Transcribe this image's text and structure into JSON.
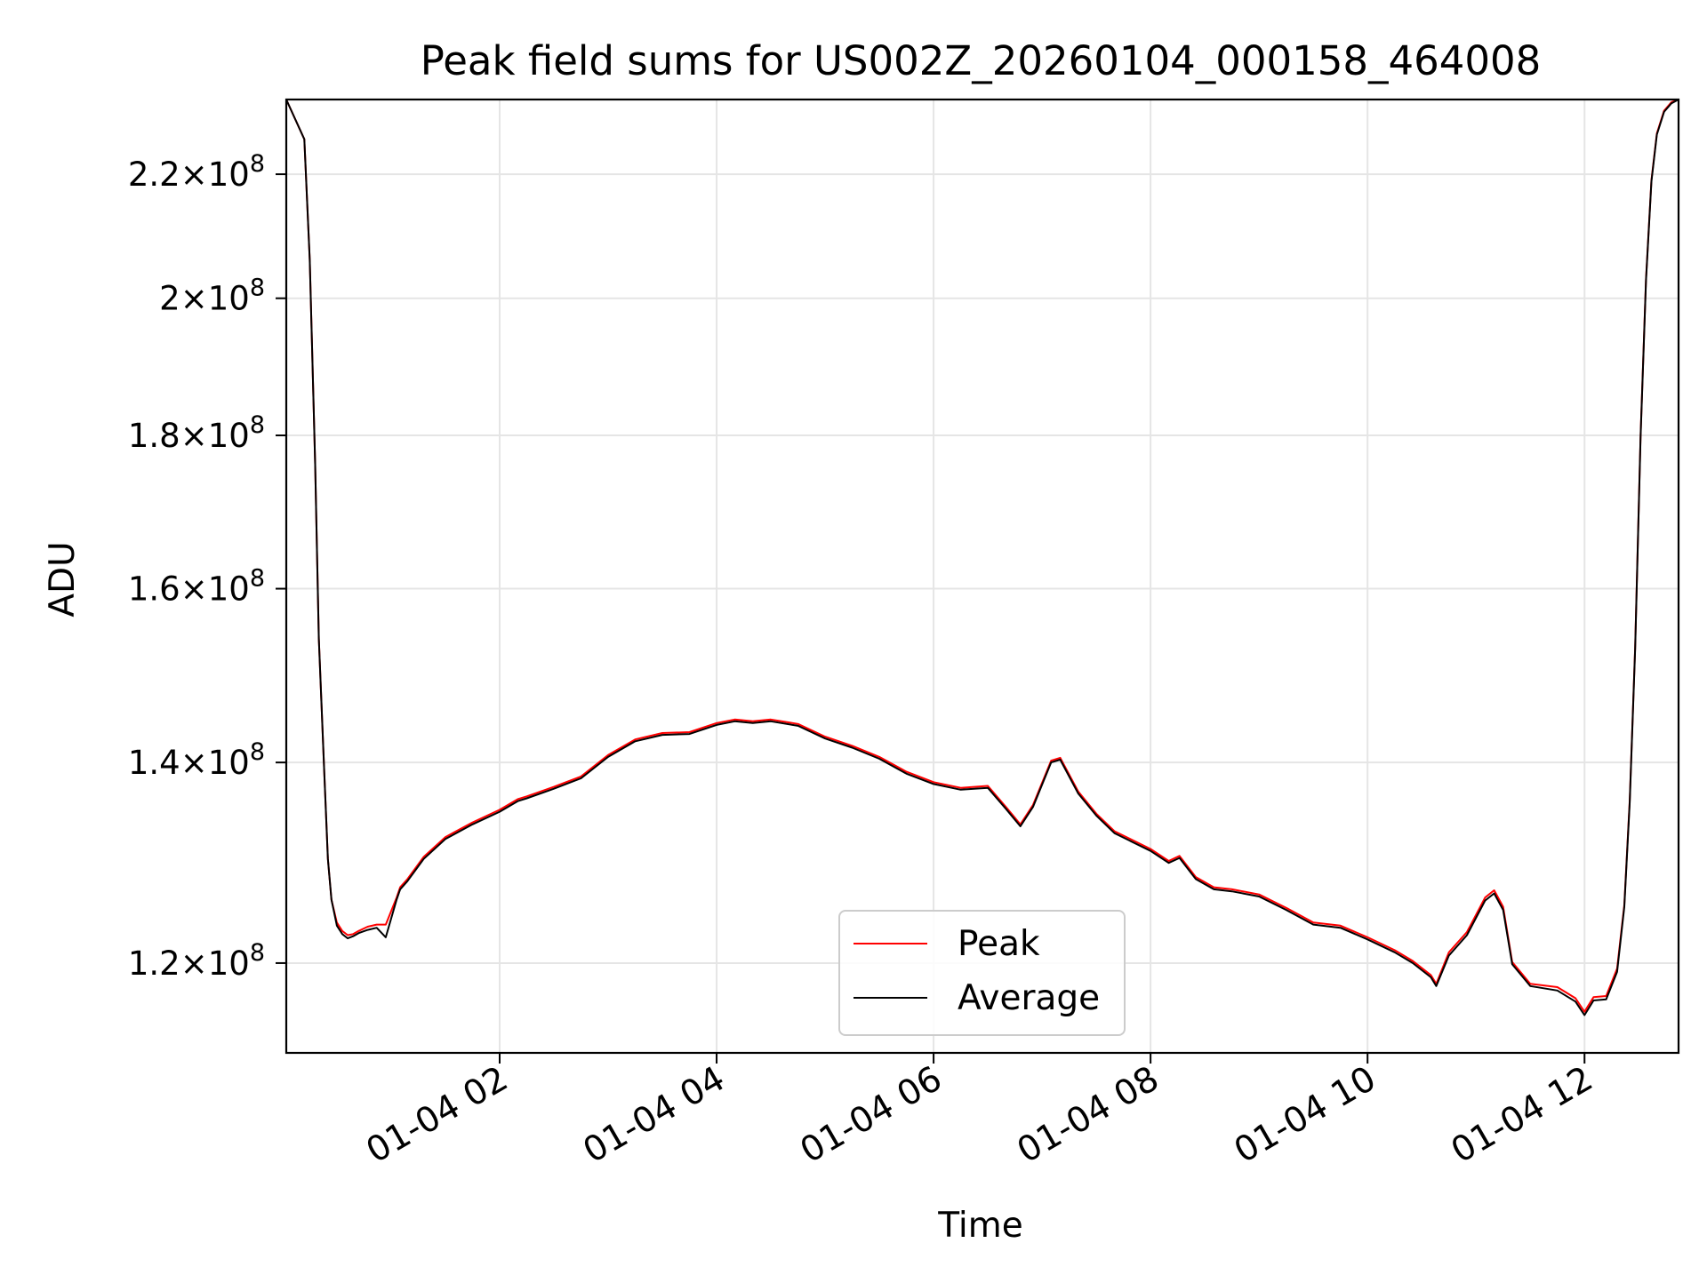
{
  "chart_data": {
    "type": "line",
    "title": "Peak field sums for US002Z_20260104_000158_464008",
    "xlabel": "Time",
    "ylabel": "ADU",
    "yscale": "log",
    "xlim": [
      "2026-01-04 00:02",
      "2026-01-04 12:52"
    ],
    "ylim": [
      112000000,
      233000000
    ],
    "grid": true,
    "legend_position": "lower center",
    "colors": {
      "Peak": "#ff0000",
      "Average": "#000000"
    },
    "x_ticks": [
      {
        "time": "2026-01-04 02:00",
        "label": "01-04 02"
      },
      {
        "time": "2026-01-04 04:00",
        "label": "01-04 04"
      },
      {
        "time": "2026-01-04 06:00",
        "label": "01-04 06"
      },
      {
        "time": "2026-01-04 08:00",
        "label": "01-04 08"
      },
      {
        "time": "2026-01-04 10:00",
        "label": "01-04 10"
      },
      {
        "time": "2026-01-04 12:00",
        "label": "01-04 12"
      }
    ],
    "y_ticks": [
      {
        "value": 120000000,
        "mantissa": "1.2",
        "exponent": "8"
      },
      {
        "value": 140000000,
        "mantissa": "1.4",
        "exponent": "8"
      },
      {
        "value": 160000000,
        "mantissa": "1.6",
        "exponent": "8"
      },
      {
        "value": 180000000,
        "mantissa": "1.8",
        "exponent": "8"
      },
      {
        "value": 200000000,
        "mantissa": "2",
        "exponent": "8"
      },
      {
        "value": 220000000,
        "mantissa": "2.2",
        "exponent": "8"
      }
    ],
    "y_tick_times": "×10",
    "x": [
      "2026-01-04 00:02",
      "2026-01-04 00:12",
      "2026-01-04 00:15",
      "2026-01-04 00:18",
      "2026-01-04 00:20",
      "2026-01-04 00:23",
      "2026-01-04 00:25",
      "2026-01-04 00:27",
      "2026-01-04 00:30",
      "2026-01-04 00:33",
      "2026-01-04 00:36",
      "2026-01-04 00:39",
      "2026-01-04 00:42",
      "2026-01-04 00:47",
      "2026-01-04 00:52",
      "2026-01-04 00:57",
      "2026-01-04 01:03",
      "2026-01-04 01:05",
      "2026-01-04 01:09",
      "2026-01-04 01:18",
      "2026-01-04 01:30",
      "2026-01-04 01:45",
      "2026-01-04 02:00",
      "2026-01-04 02:10",
      "2026-01-04 02:15",
      "2026-01-04 02:30",
      "2026-01-04 02:45",
      "2026-01-04 03:00",
      "2026-01-04 03:15",
      "2026-01-04 03:30",
      "2026-01-04 03:45",
      "2026-01-04 04:00",
      "2026-01-04 04:10",
      "2026-01-04 04:20",
      "2026-01-04 04:30",
      "2026-01-04 04:45",
      "2026-01-04 05:00",
      "2026-01-04 05:15",
      "2026-01-04 05:30",
      "2026-01-04 05:45",
      "2026-01-04 06:00",
      "2026-01-04 06:15",
      "2026-01-04 06:30",
      "2026-01-04 06:40",
      "2026-01-04 06:48",
      "2026-01-04 06:55",
      "2026-01-04 07:05",
      "2026-01-04 07:10",
      "2026-01-04 07:20",
      "2026-01-04 07:30",
      "2026-01-04 07:40",
      "2026-01-04 08:00",
      "2026-01-04 08:10",
      "2026-01-04 08:16",
      "2026-01-04 08:25",
      "2026-01-04 08:35",
      "2026-01-04 08:45",
      "2026-01-04 09:00",
      "2026-01-04 09:15",
      "2026-01-04 09:30",
      "2026-01-04 09:45",
      "2026-01-04 10:00",
      "2026-01-04 10:15",
      "2026-01-04 10:25",
      "2026-01-04 10:35",
      "2026-01-04 10:38",
      "2026-01-04 10:45",
      "2026-01-04 10:55",
      "2026-01-04 11:05",
      "2026-01-04 11:10",
      "2026-01-04 11:15",
      "2026-01-04 11:20",
      "2026-01-04 11:30",
      "2026-01-04 11:45",
      "2026-01-04 11:55",
      "2026-01-04 12:00",
      "2026-01-04 12:05",
      "2026-01-04 12:12",
      "2026-01-04 12:18",
      "2026-01-04 12:22",
      "2026-01-04 12:25",
      "2026-01-04 12:28",
      "2026-01-04 12:31",
      "2026-01-04 12:34",
      "2026-01-04 12:37",
      "2026-01-04 12:40",
      "2026-01-04 12:44",
      "2026-01-04 12:48",
      "2026-01-04 12:52"
    ],
    "series": [
      {
        "name": "Peak",
        "values": [
          233000000,
          226000000,
          206000000,
          176000000,
          154000000,
          139000000,
          130000000,
          126000000,
          123800000,
          123000000,
          122600000,
          122700000,
          123000000,
          123400000,
          123600000,
          123600000,
          126200000,
          127200000,
          128000000,
          130200000,
          132200000,
          133700000,
          135000000,
          136100000,
          136400000,
          137400000,
          138500000,
          140800000,
          142500000,
          143200000,
          143300000,
          144300000,
          144700000,
          144500000,
          144700000,
          144200000,
          142800000,
          141800000,
          140600000,
          139000000,
          137900000,
          137300000,
          137500000,
          135300000,
          133500000,
          135500000,
          140200000,
          140500000,
          136900000,
          134600000,
          132800000,
          131000000,
          129800000,
          130300000,
          128200000,
          127200000,
          127000000,
          126500000,
          125200000,
          123800000,
          123500000,
          122400000,
          121200000,
          120200000,
          118900000,
          118100000,
          121000000,
          122900000,
          126200000,
          126900000,
          125300000,
          120100000,
          118100000,
          117800000,
          116800000,
          115600000,
          116900000,
          117000000,
          119500000,
          125500000,
          136000000,
          153000000,
          180000000,
          203000000,
          219000000,
          227000000,
          231000000,
          232500000,
          233000000
        ]
      },
      {
        "name": "Average",
        "values": [
          233000000,
          226000000,
          206000000,
          176000000,
          154000000,
          139000000,
          130000000,
          126000000,
          123500000,
          122700000,
          122300000,
          122500000,
          122800000,
          123100000,
          123300000,
          122400000,
          126000000,
          127000000,
          127800000,
          130000000,
          132000000,
          133500000,
          134800000,
          135900000,
          136200000,
          137200000,
          138300000,
          140600000,
          142300000,
          143000000,
          143100000,
          144100000,
          144500000,
          144300000,
          144500000,
          144000000,
          142600000,
          141600000,
          140400000,
          138800000,
          137700000,
          137100000,
          137300000,
          135100000,
          133300000,
          135300000,
          140000000,
          140300000,
          136700000,
          134400000,
          132600000,
          130800000,
          129600000,
          130100000,
          128000000,
          127000000,
          126800000,
          126300000,
          125000000,
          123600000,
          123300000,
          122200000,
          121000000,
          120000000,
          118700000,
          117900000,
          120700000,
          122600000,
          125900000,
          126600000,
          125000000,
          119900000,
          117900000,
          117500000,
          116500000,
          115300000,
          116600000,
          116700000,
          119200000,
          125300000,
          135800000,
          152800000,
          179800000,
          202800000,
          218800000,
          226800000,
          230800000,
          232300000,
          233000000
        ]
      }
    ]
  }
}
